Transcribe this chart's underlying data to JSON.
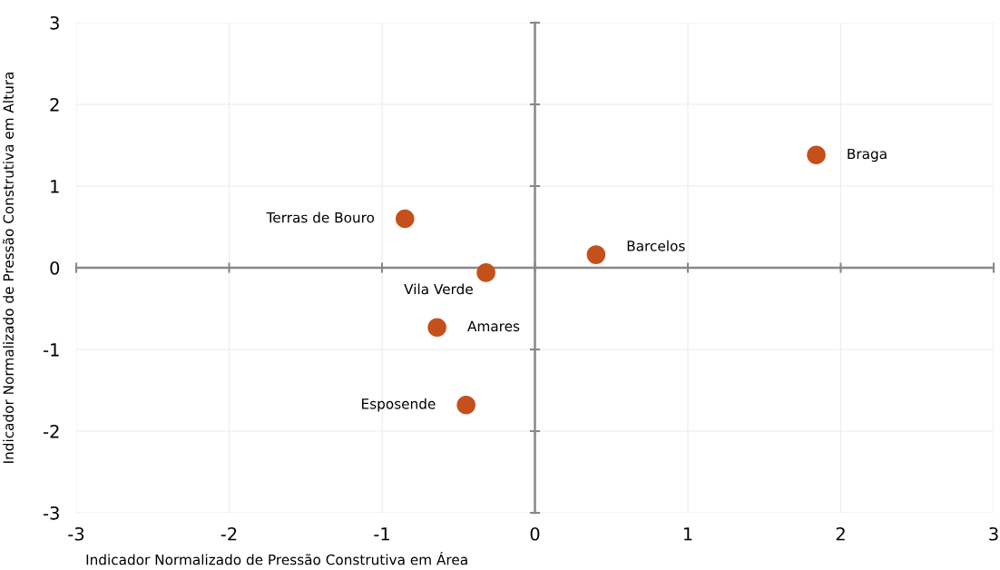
{
  "chart_data": {
    "type": "scatter",
    "xlabel": "Indicador Normalizado de Pressão Construtiva em Área",
    "ylabel": "Indicador Normalizado de Pressão Construtiva em Altura",
    "series": [
      {
        "color": "#c4501b",
        "x": [
          1.84,
          -0.85,
          0.4,
          -0.32,
          -0.64,
          -0.45
        ],
        "values": [
          1.38,
          0.6,
          0.16,
          -0.06,
          -0.73,
          -1.68
        ]
      }
    ],
    "annotations": [
      {
        "text": "Braga",
        "x": 1.84,
        "y": 1.38
      },
      {
        "text": "Terras de Bouro",
        "x": -0.85,
        "y": 0.6
      },
      {
        "text": "Barcelos",
        "x": 0.4,
        "y": 0.16
      },
      {
        "text": "Vila Verde",
        "x": -0.32,
        "y": -0.06
      },
      {
        "text": "Amares",
        "x": -0.64,
        "y": -0.73
      },
      {
        "text": "Esposende",
        "x": -0.45,
        "y": -1.68
      }
    ],
    "xlim": [
      -3,
      3
    ],
    "ylim": [
      -3,
      3
    ],
    "xticks": [
      -3,
      -2,
      -1,
      0,
      1,
      2,
      3
    ],
    "yticks": [
      -3,
      -2,
      -1,
      0,
      1,
      2,
      3
    ],
    "grid": true,
    "marker": "circle",
    "legend": false
  }
}
